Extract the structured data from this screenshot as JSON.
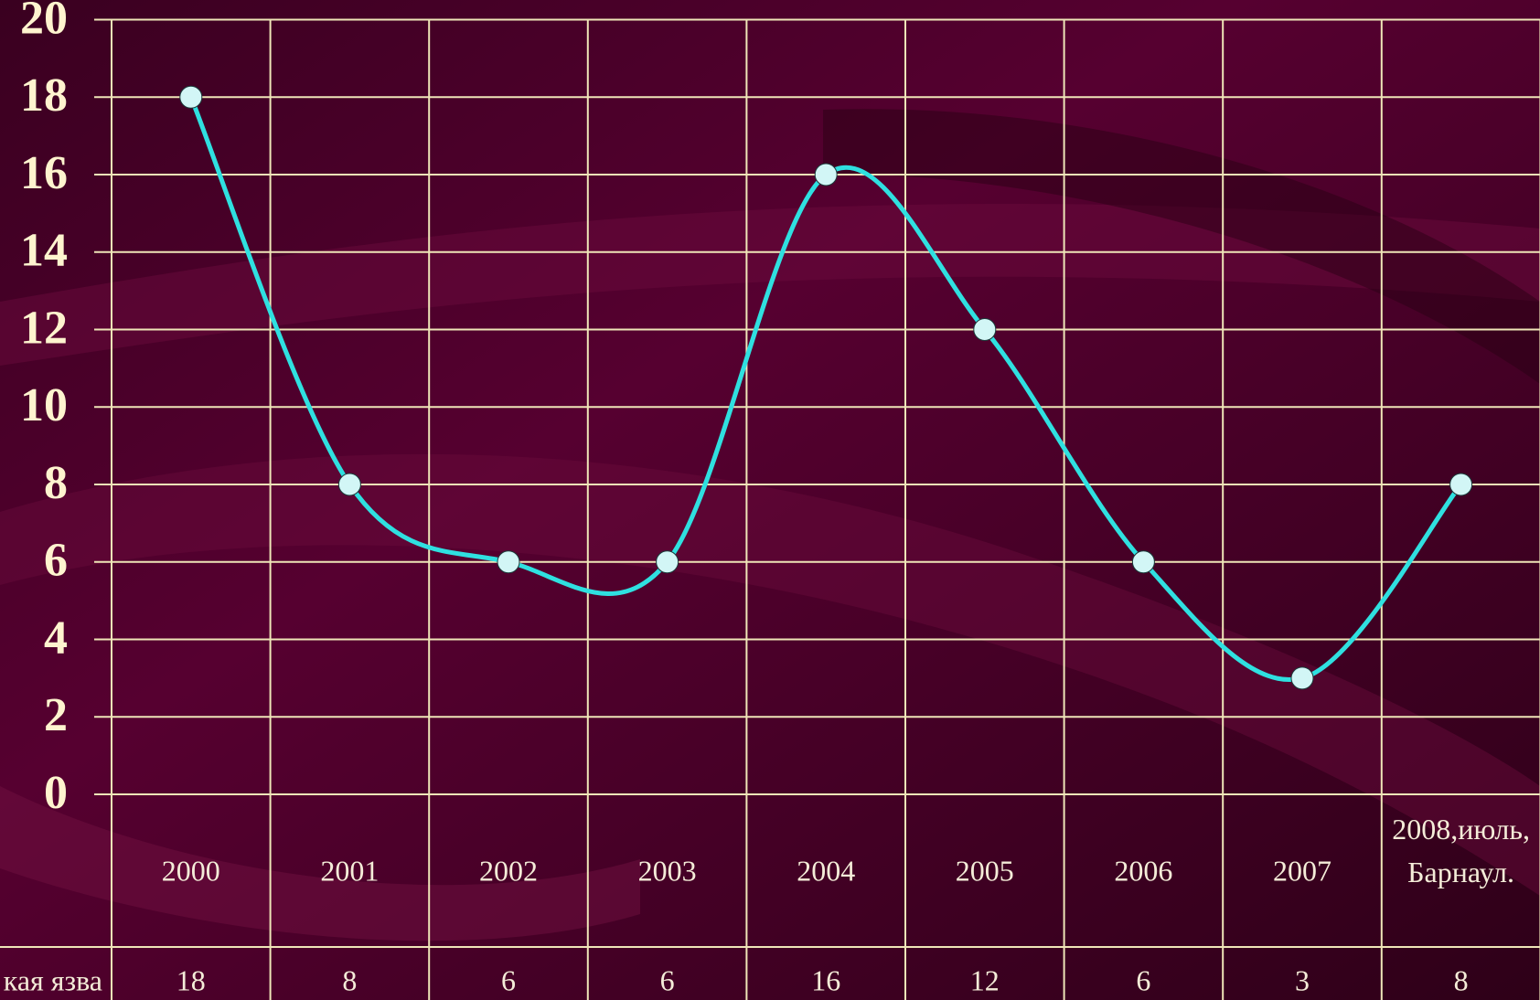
{
  "chart_data": {
    "type": "line",
    "categories": [
      "2000",
      "2001",
      "2002",
      "2003",
      "2004",
      "2005",
      "2006",
      "2007",
      "2008,июль,Барнаул."
    ],
    "series": [
      {
        "name": "кая язва",
        "color": "#2fe0e0",
        "marker_color": "#d2f6f6",
        "values": [
          18,
          8,
          6,
          6,
          16,
          12,
          6,
          3,
          8
        ]
      }
    ],
    "ylim": [
      0,
      20
    ],
    "yticks": [
      0,
      2,
      4,
      6,
      8,
      10,
      12,
      14,
      16,
      18,
      20
    ],
    "grid": true,
    "grid_color": "#efe6b8",
    "smooth": true,
    "data_table": true
  }
}
